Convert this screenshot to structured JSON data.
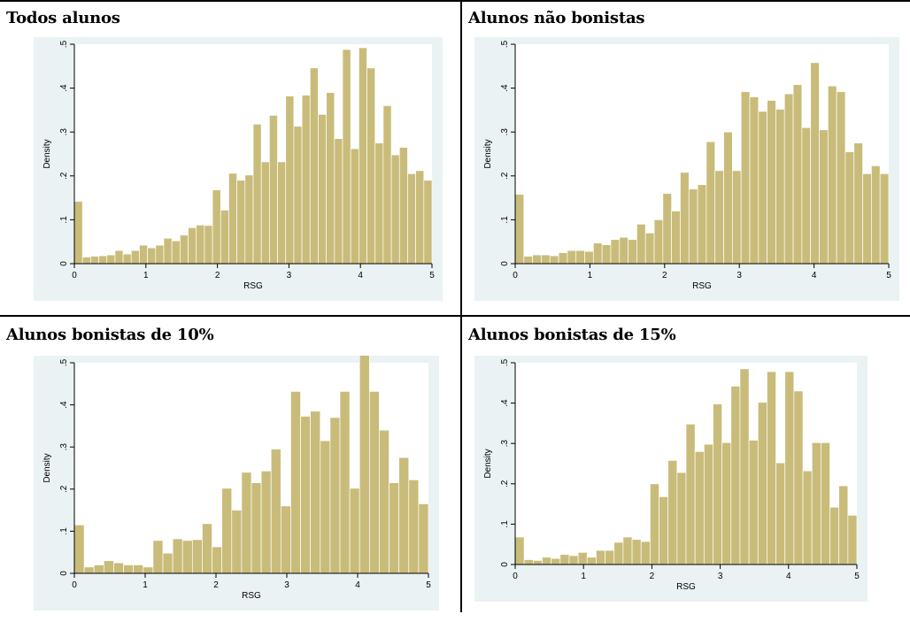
{
  "panels": [
    {
      "title": "Todos alunos",
      "chart_data": {
        "type": "bar",
        "xlabel": "RSG",
        "ylabel": "Density",
        "xlim": [
          0,
          5
        ],
        "ylim": [
          0,
          0.5
        ],
        "xticks": [
          "0",
          "1",
          "2",
          "3",
          "4",
          "5"
        ],
        "yticks": [
          "0",
          ".1",
          ".2",
          ".3",
          ".4",
          ".5"
        ],
        "bin_width": 0.125,
        "x_start": 0,
        "values": [
          0.142,
          0.015,
          0.017,
          0.018,
          0.02,
          0.03,
          0.022,
          0.03,
          0.042,
          0.036,
          0.042,
          0.058,
          0.052,
          0.065,
          0.082,
          0.088,
          0.087,
          0.168,
          0.122,
          0.206,
          0.19,
          0.202,
          0.318,
          0.232,
          0.338,
          0.232,
          0.382,
          0.313,
          0.384,
          0.446,
          0.34,
          0.39,
          0.285,
          0.488,
          0.262,
          0.492,
          0.446,
          0.275,
          0.36,
          0.248,
          0.265,
          0.205,
          0.212,
          0.19
        ]
      }
    },
    {
      "title": "Alunos não bonistas",
      "chart_data": {
        "type": "bar",
        "xlabel": "RSG",
        "ylabel": "Density",
        "xlim": [
          0,
          5
        ],
        "ylim": [
          0,
          0.5
        ],
        "xticks": [
          "0",
          "1",
          "2",
          "3",
          "4",
          "5"
        ],
        "yticks": [
          "0",
          ".1",
          ".2",
          ".3",
          ".4",
          ".5"
        ],
        "bin_width": 0.125,
        "x_start": 0,
        "values": [
          0.158,
          0.017,
          0.02,
          0.02,
          0.018,
          0.025,
          0.03,
          0.03,
          0.028,
          0.047,
          0.043,
          0.055,
          0.06,
          0.055,
          0.09,
          0.07,
          0.1,
          0.16,
          0.12,
          0.208,
          0.17,
          0.18,
          0.278,
          0.212,
          0.3,
          0.212,
          0.392,
          0.38,
          0.347,
          0.372,
          0.352,
          0.387,
          0.408,
          0.31,
          0.458,
          0.305,
          0.405,
          0.392,
          0.255,
          0.275,
          0.205,
          0.223,
          0.205
        ]
      }
    },
    {
      "title": "Alunos bonistas de 10%",
      "chart_data": {
        "type": "bar",
        "xlabel": "RSG",
        "ylabel": "Density",
        "xlim": [
          0,
          5
        ],
        "ylim": [
          0,
          0.5
        ],
        "xticks": [
          "0",
          "1",
          "2",
          "3",
          "4",
          "5"
        ],
        "yticks": [
          "0",
          ".1",
          ".2",
          ".3",
          ".4",
          ".5"
        ],
        "bin_width": 0.125,
        "x_start": 0,
        "values": [
          0.115,
          0.015,
          0.02,
          0.03,
          0.025,
          0.02,
          0.02,
          0.015,
          0.078,
          0.048,
          0.082,
          0.078,
          0.08,
          0.118,
          0.063,
          0.202,
          0.15,
          0.24,
          0.215,
          0.243,
          0.295,
          0.16,
          0.432,
          0.373,
          0.385,
          0.315,
          0.37,
          0.432,
          0.202,
          0.525,
          0.432,
          0.34,
          0.215,
          0.275,
          0.222,
          0.165
        ]
      }
    },
    {
      "title": "Alunos bonistas de 15%",
      "chart_data": {
        "type": "bar",
        "xlabel": "RSG",
        "ylabel": "Density",
        "xlim": [
          0,
          5
        ],
        "ylim": [
          0,
          0.5
        ],
        "xticks": [
          "0",
          "1",
          "2",
          "3",
          "4",
          "5"
        ],
        "yticks": [
          "0",
          ".1",
          ".2",
          ".3",
          ".4",
          ".5"
        ],
        "bin_width": 0.125,
        "x_start": 0,
        "values": [
          0.068,
          0.012,
          0.01,
          0.018,
          0.015,
          0.025,
          0.022,
          0.03,
          0.018,
          0.035,
          0.035,
          0.055,
          0.068,
          0.062,
          0.057,
          0.2,
          0.168,
          0.258,
          0.228,
          0.348,
          0.28,
          0.298,
          0.398,
          0.302,
          0.442,
          0.485,
          0.308,
          0.402,
          0.478,
          0.252,
          0.478,
          0.43,
          0.232,
          0.302,
          0.302,
          0.142,
          0.195,
          0.122
        ]
      }
    }
  ],
  "colors": {
    "bar_fill": "#c9bc7a",
    "bar_edge": "#ffffff",
    "plot_bg": "#ffffff",
    "outer_bg": "#eaf2f3",
    "axis": "#000000"
  }
}
